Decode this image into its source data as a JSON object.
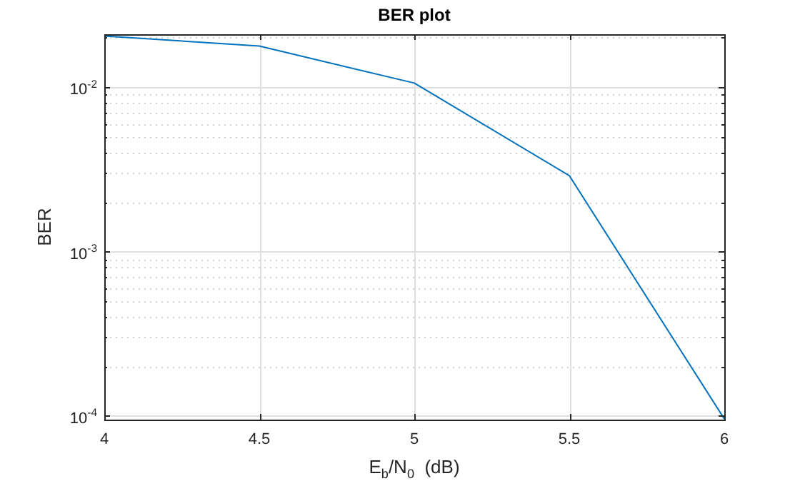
{
  "chart_data": {
    "type": "line",
    "title": "BER plot",
    "xlabel": "E$_{b}$/N$_{0}$  (dB)",
    "ylabel": "BER",
    "x": [
      4,
      4.5,
      5,
      5.5,
      6
    ],
    "series": [
      {
        "color": "#0072bd",
        "values": [
          0.0205,
          0.0178,
          0.0106,
          0.0029,
          9.6e-05
        ]
      }
    ],
    "xlim": [
      4,
      6
    ],
    "xticks": [
      4,
      4.5,
      5,
      5.5,
      6
    ],
    "ylim": [
      9.5e-05,
      0.021
    ],
    "yticks": [
      {
        "value": 0.0001,
        "label": "10$^{-4}$"
      },
      {
        "value": 0.0002,
        "label": null
      },
      {
        "value": 0.0003,
        "label": null
      },
      {
        "value": 0.0004,
        "label": null
      },
      {
        "value": 0.0005,
        "label": null
      },
      {
        "value": 0.0006,
        "label": null
      },
      {
        "value": 0.0007,
        "label": null
      },
      {
        "value": 0.0008,
        "label": null
      },
      {
        "value": 0.0009,
        "label": null
      },
      {
        "value": 0.001,
        "label": "10$^{-3}$"
      },
      {
        "value": 0.002,
        "label": null
      },
      {
        "value": 0.003,
        "label": null
      },
      {
        "value": 0.004,
        "label": null
      },
      {
        "value": 0.005,
        "label": null
      },
      {
        "value": 0.006,
        "label": null
      },
      {
        "value": 0.007,
        "label": null
      },
      {
        "value": 0.008,
        "label": null
      },
      {
        "value": 0.009,
        "label": null
      },
      {
        "value": 0.01,
        "label": "10$^{-2}$"
      },
      {
        "value": 0.02,
        "label": null
      }
    ],
    "log": "y",
    "grid": true,
    "legend": false,
    "marker": "none",
    "line_style": "solid"
  }
}
